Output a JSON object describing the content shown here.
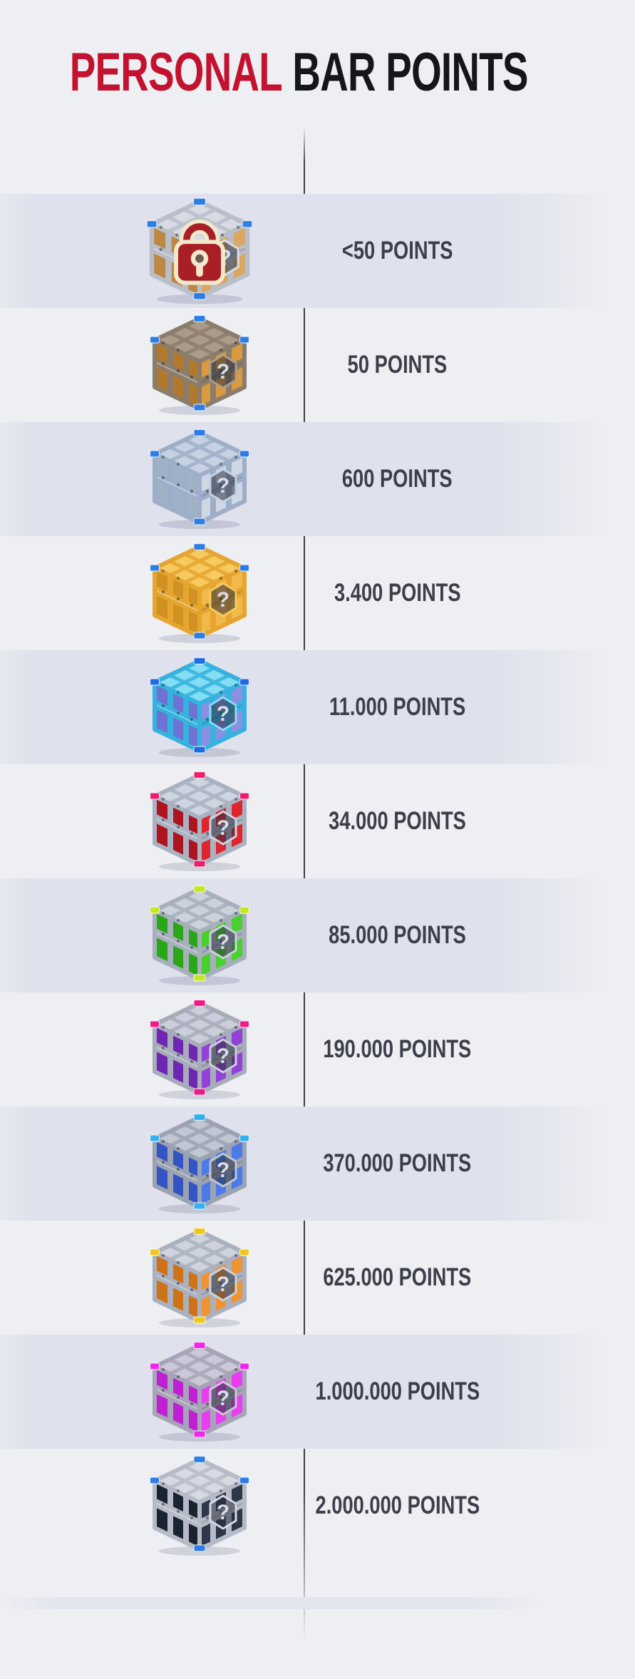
{
  "title": {
    "accent_text": "PERSONAL",
    "rest_text": "BAR POINTS",
    "accent_color": "#c31230",
    "text_color": "#15161b"
  },
  "colors": {
    "background": "#edeff3",
    "row_band": "#dfe1ec",
    "label_text": "#3c3e49",
    "divider_line": "#26262a",
    "lock_body": "#a82026",
    "lock_outline": "#f2e8cb"
  },
  "rows": [
    {
      "name": "locked-wooden-crate",
      "label": "<50 POINTS",
      "locked": true,
      "colors": {
        "frame": "#b9bec9",
        "top": "#d8dbe3",
        "panel": "#d9a75f",
        "panelDark": "#bc8844",
        "gem": "#2e7de6"
      }
    },
    {
      "name": "bronze-wooden-crate",
      "label": "50 POINTS",
      "locked": false,
      "colors": {
        "frame": "#8b7d6c",
        "top": "#ab9c8a",
        "panel": "#d99a40",
        "panelDark": "#b2792c",
        "gem": "#2e7de6"
      }
    },
    {
      "name": "silver-crate",
      "label": "600 POINTS",
      "locked": false,
      "colors": {
        "frame": "#9dafc8",
        "top": "#c6d2e2",
        "panel": "#ced7e4",
        "panelDark": "#a2b0c6",
        "gem": "#2e7de6"
      }
    },
    {
      "name": "golden-crate",
      "label": "3.400 POINTS",
      "locked": false,
      "colors": {
        "frame": "#e5a52f",
        "top": "#f6ca5e",
        "panel": "#f3b84c",
        "panelDark": "#d19122",
        "gem": "#2e7de6"
      }
    },
    {
      "name": "cyan-crate",
      "label": "11.000 POINTS",
      "locked": false,
      "colors": {
        "frame": "#35b2dd",
        "top": "#84def3",
        "panel": "#8b90e3",
        "panelDark": "#6d72d4",
        "gem": "#1e6ce4"
      }
    },
    {
      "name": "ruby-crate",
      "label": "34.000 POINTS",
      "locked": false,
      "colors": {
        "frame": "#a9b2c1",
        "top": "#ced5e1",
        "panel": "#e0252f",
        "panelDark": "#ad141f",
        "gem": "#ee1e6e"
      }
    },
    {
      "name": "emerald-crate",
      "label": "85.000 POINTS",
      "locked": false,
      "colors": {
        "frame": "#a7afbc",
        "top": "#cbd2dc",
        "panel": "#48d02c",
        "panelDark": "#2aa716",
        "gem": "#c5e622"
      }
    },
    {
      "name": "amethyst-crate",
      "label": "190.000 POINTS",
      "locked": false,
      "colors": {
        "frame": "#a7acba",
        "top": "#cbcfda",
        "panel": "#9342d8",
        "panelDark": "#6f26b2",
        "gem": "#ee1c88"
      }
    },
    {
      "name": "sapphire-crate",
      "label": "370.000 POINTS",
      "locked": false,
      "colors": {
        "frame": "#9ba2b1",
        "top": "#c0c6d2",
        "panel": "#4b7ae9",
        "panelDark": "#3254c4",
        "gem": "#36b0ee"
      }
    },
    {
      "name": "amber-crate",
      "label": "625.000 POINTS",
      "locked": false,
      "colors": {
        "frame": "#aab0bd",
        "top": "#ced3dd",
        "panel": "#f09432",
        "panelDark": "#ce7215",
        "gem": "#eec81e"
      }
    },
    {
      "name": "magenta-crate",
      "label": "1.000.000 POINTS",
      "locked": false,
      "colors": {
        "frame": "#a8a4b8",
        "top": "#cbc8d7",
        "panel": "#ea3df1",
        "panelDark": "#bf20d4",
        "gem": "#ee28e8"
      }
    },
    {
      "name": "obsidian-crate",
      "label": "2.000.000 POINTS",
      "locked": false,
      "colors": {
        "frame": "#b7bbc7",
        "top": "#d7dae2",
        "panel": "#2d3749",
        "panelDark": "#1a2330",
        "gem": "#2e7de6"
      }
    }
  ]
}
